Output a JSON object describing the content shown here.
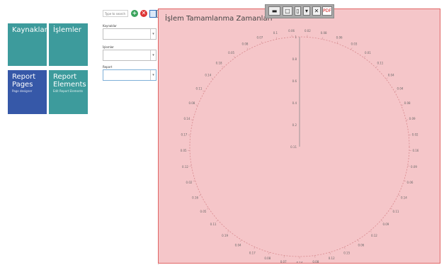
{
  "tiles": [
    {
      "label": "Kaynaklar",
      "sub": "",
      "color": "teal"
    },
    {
      "label": "İşlemler",
      "sub": "",
      "color": "teal"
    },
    {
      "label": "Report Pages",
      "sub": "Page designer",
      "color": "blue"
    },
    {
      "label": "Report Elements",
      "sub": "Edit Report Elements",
      "color": "teal"
    }
  ],
  "panel": {
    "search_placeholder": "Type to search",
    "fields": [
      {
        "label": "Kaynaklar",
        "value": ""
      },
      {
        "label": "İşlemler",
        "value": ""
      },
      {
        "label": "Report",
        "value": ""
      }
    ]
  },
  "toolbar_icons": [
    "add-icon",
    "delete-icon",
    "save-icon",
    "export-icon"
  ],
  "float_toolbar": {
    "close": "✕",
    "pdf": "PDF"
  },
  "colors": {
    "tile_teal": "#3d9b9c",
    "tile_blue": "#3658a8",
    "chart_bg": "#f5c6c9",
    "chart_border": "#e06565"
  },
  "chart_data": {
    "type": "polar",
    "title": "İşlem Tamamlanma Zamanları",
    "radial_ticks": [
      "1",
      "0.8",
      "0.6",
      "0.4",
      "0.2",
      "0.11"
    ],
    "angular_labels": [
      "0.02",
      "0.08",
      "0.06",
      "0.03",
      "0.01",
      "0.11",
      "0.04",
      "0.04",
      "0.08",
      "0.09",
      "0.02",
      "0.16",
      "0.09",
      "0.06",
      "0.14",
      "0.11",
      "0.09",
      "0.12",
      "0.06",
      "0.15",
      "0.12",
      "0.08",
      "0.14",
      "0.07",
      "0.08",
      "0.17",
      "0.04",
      "0.19",
      "0.11",
      "0.05",
      "0.16",
      "0.02",
      "0.12",
      "0.05",
      "0.17",
      "0.14",
      "0.08",
      "0.11",
      "0.14",
      "0.18",
      "0.05",
      "0.08",
      "0.07",
      "0.1",
      "0.06"
    ]
  }
}
